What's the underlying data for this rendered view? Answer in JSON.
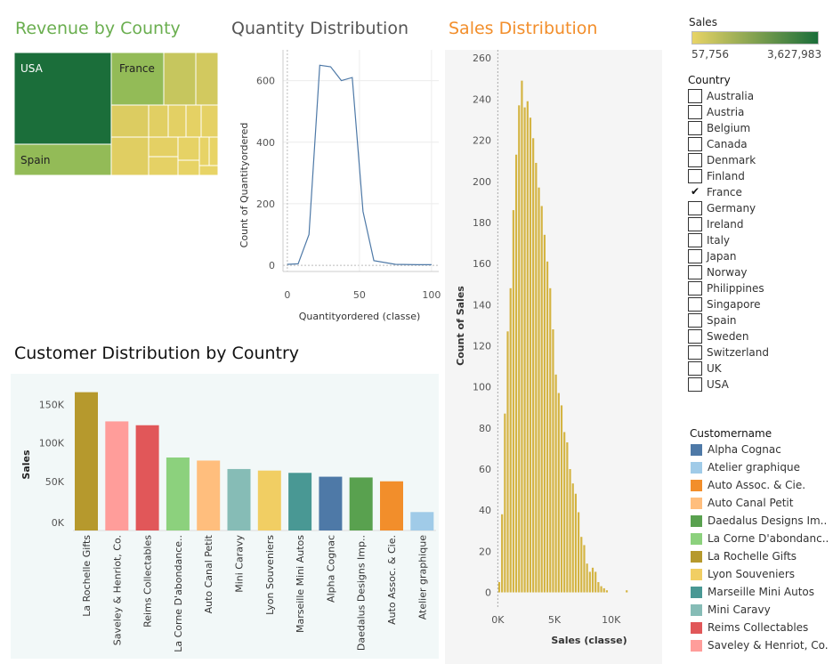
{
  "treemap": {
    "title": "Revenue by County",
    "title_color": "#6aae4f",
    "cells": [
      {
        "label": "USA",
        "color": "#1b6e3a"
      },
      {
        "label": "France",
        "color": "#93bb57"
      },
      {
        "label": "Spain",
        "color": "#93bb57"
      }
    ]
  },
  "quantity": {
    "title": "Quantity Distribution",
    "ylabel": "Count of Quantityordered",
    "xlabel": "Quantityordered (classe)",
    "line_color": "#4e79a7"
  },
  "sales": {
    "title": "Sales Distribution",
    "title_color": "#f28e2b",
    "ylabel": "Count of Sales",
    "xlabel": "Sales (classe)",
    "bar_color": "#d4b442"
  },
  "customer": {
    "title": "Customer Distribution by Country",
    "ylabel": "Sales"
  },
  "color_legend": {
    "title": "Sales",
    "min_label": "57,756",
    "max_label": "3,627,983",
    "start_color": "#e8d466",
    "end_color": "#1b6e3a"
  },
  "country_filter": {
    "title": "Country",
    "items": [
      {
        "label": "Australia",
        "checked": false
      },
      {
        "label": "Austria",
        "checked": false
      },
      {
        "label": "Belgium",
        "checked": false
      },
      {
        "label": "Canada",
        "checked": false
      },
      {
        "label": "Denmark",
        "checked": false
      },
      {
        "label": "Finland",
        "checked": false
      },
      {
        "label": "France",
        "checked": true
      },
      {
        "label": "Germany",
        "checked": false
      },
      {
        "label": "Ireland",
        "checked": false
      },
      {
        "label": "Italy",
        "checked": false
      },
      {
        "label": "Japan",
        "checked": false
      },
      {
        "label": "Norway",
        "checked": false
      },
      {
        "label": "Philippines",
        "checked": false
      },
      {
        "label": "Singapore",
        "checked": false
      },
      {
        "label": "Spain",
        "checked": false
      },
      {
        "label": "Sweden",
        "checked": false
      },
      {
        "label": "Switzerland",
        "checked": false
      },
      {
        "label": "UK",
        "checked": false
      },
      {
        "label": "USA",
        "checked": false
      }
    ]
  },
  "customer_legend": {
    "title": "Customername",
    "items": [
      {
        "label": "Alpha Cognac",
        "color": "#4e79a7"
      },
      {
        "label": "Atelier graphique",
        "color": "#a0cbe8"
      },
      {
        "label": "Auto Assoc. & Cie.",
        "color": "#f28e2b"
      },
      {
        "label": "Auto Canal Petit",
        "color": "#ffbe7d"
      },
      {
        "label": "Daedalus Designs Im..",
        "color": "#59a14f"
      },
      {
        "label": "La Corne D'abondanc..",
        "color": "#8cd17d"
      },
      {
        "label": "La Rochelle Gifts",
        "color": "#b6992d"
      },
      {
        "label": "Lyon Souveniers",
        "color": "#f1ce63"
      },
      {
        "label": "Marseille Mini Autos",
        "color": "#499894"
      },
      {
        "label": "Mini Caravy",
        "color": "#86bcb6"
      },
      {
        "label": "Reims Collectables",
        "color": "#e15759"
      },
      {
        "label": "Saveley & Henriot, Co.",
        "color": "#ff9d9a"
      }
    ]
  },
  "chart_data": [
    {
      "type": "treemap",
      "title": "Revenue by County",
      "color_measure": "Sales",
      "labels": [
        "USA",
        "France",
        "Spain"
      ]
    },
    {
      "type": "line",
      "title": "Quantity Distribution",
      "xlabel": "Quantityordered (classe)",
      "ylabel": "Count of Quantityordered",
      "x": [
        0,
        7.5,
        15,
        22.5,
        30,
        37.5,
        45,
        52.5,
        60,
        75,
        90,
        100
      ],
      "y": [
        3,
        5,
        100,
        650,
        645,
        600,
        610,
        175,
        15,
        3,
        2,
        2
      ],
      "xlim": [
        -3,
        105
      ],
      "ylim": [
        -20,
        700
      ],
      "xticks": [
        0,
        50,
        100
      ],
      "yticks": [
        0,
        200,
        400,
        600
      ],
      "xtick_labels": [
        "0",
        "50",
        "100"
      ],
      "ytick_labels": [
        "0",
        "200",
        "400",
        "600"
      ],
      "grid": true
    },
    {
      "type": "bar",
      "title": "Sales Distribution",
      "xlabel": "Sales (classe)",
      "ylabel": "Count of Sales",
      "x_start": 0,
      "bin_width": 250,
      "values": [
        5,
        38,
        87,
        127,
        148,
        186,
        213,
        237,
        249,
        236,
        239,
        231,
        221,
        209,
        197,
        188,
        174,
        161,
        148,
        128,
        106,
        97,
        91,
        78,
        73,
        60,
        53,
        48,
        39,
        27,
        23,
        14,
        10,
        12,
        10,
        5,
        3,
        2,
        1,
        0,
        0,
        0,
        0,
        0,
        0,
        1
      ],
      "xlim": [
        -500,
        14500
      ],
      "ylim": [
        -8,
        264
      ],
      "xticks": [
        0,
        5000,
        10000
      ],
      "xtick_labels": [
        "0K",
        "5K",
        "10K"
      ],
      "yticks": [
        0,
        20,
        40,
        60,
        80,
        100,
        120,
        140,
        160,
        180,
        200,
        220,
        240,
        260
      ],
      "ytick_labels": [
        "0",
        "20",
        "40",
        "60",
        "80",
        "100",
        "120",
        "140",
        "160",
        "180",
        "200",
        "220",
        "240",
        "260"
      ],
      "grid": false
    },
    {
      "type": "bar",
      "title": "Customer Distribution by Country",
      "ylabel": "Sales",
      "categories": [
        "La Rochelle Gifts",
        "Saveley & Henriot, Co.",
        "Reims Collectables",
        "La Corne D'abondance..",
        "Auto Canal Petit",
        "Mini Caravy",
        "Lyon Souveniers",
        "Marseille Mini Autos",
        "Alpha Cognac",
        "Daedalus Designs Imp..",
        "Auto Assoc. & Cie.",
        "Atelier graphique"
      ],
      "values": [
        180000,
        142000,
        137000,
        95000,
        91000,
        80000,
        78000,
        75000,
        70000,
        69000,
        64000,
        24000
      ],
      "colors": [
        "#b6992d",
        "#ff9d9a",
        "#e15759",
        "#8cd17d",
        "#ffbe7d",
        "#86bcb6",
        "#f1ce63",
        "#499894",
        "#4e79a7",
        "#59a14f",
        "#f28e2b",
        "#a0cbe8"
      ],
      "ylim": [
        0,
        190000
      ],
      "yticks": [
        0,
        50000,
        100000,
        150000
      ],
      "ytick_labels": [
        "0K",
        "50K",
        "100K",
        "150K"
      ],
      "grid": false
    }
  ]
}
